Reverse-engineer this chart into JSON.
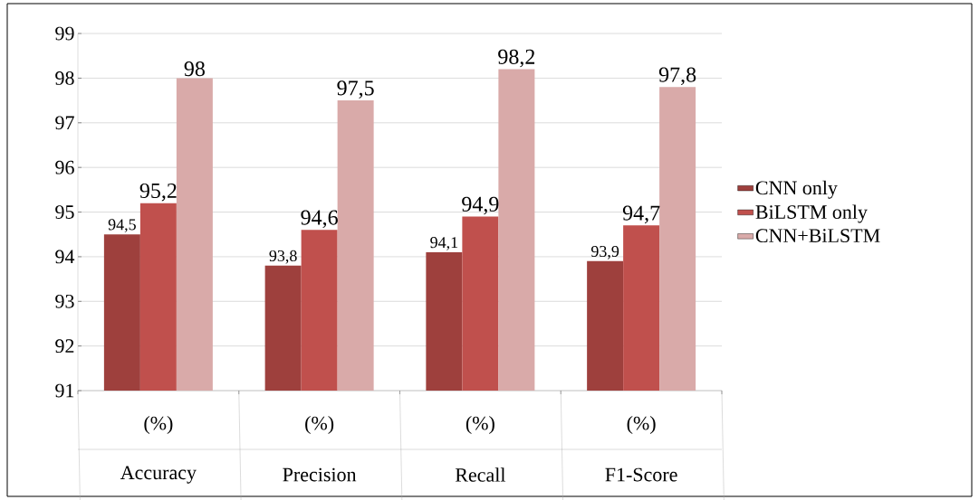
{
  "chart_data": {
    "type": "bar",
    "categories": [
      "Accuracy",
      "Precision",
      "Recall",
      "F1-Score"
    ],
    "series": [
      {
        "name": "CNN only",
        "color": "#9e403d",
        "values": [
          94.5,
          93.8,
          94.1,
          93.9
        ],
        "value_labels": [
          "94,5",
          "93,8",
          "94,1",
          "93,9"
        ]
      },
      {
        "name": "BiLSTM only",
        "color": "#c0504d",
        "values": [
          95.2,
          94.6,
          94.9,
          94.7
        ],
        "value_labels": [
          "95,2",
          "94,6",
          "94,9",
          "94,7"
        ]
      },
      {
        "name": "CNN+BiLSTM",
        "color": "#d9aaa9",
        "values": [
          98,
          97.5,
          98.2,
          97.8
        ],
        "value_labels": [
          "98",
          "97,5",
          "98,2",
          "97,8"
        ]
      }
    ],
    "annotations": [
      "(%)",
      "(%)",
      "(%)",
      "(%)"
    ],
    "ylim": [
      91,
      99
    ],
    "yticks": [
      91,
      92,
      93,
      94,
      95,
      96,
      97,
      98,
      99
    ],
    "grid": "y",
    "legend": "right"
  }
}
